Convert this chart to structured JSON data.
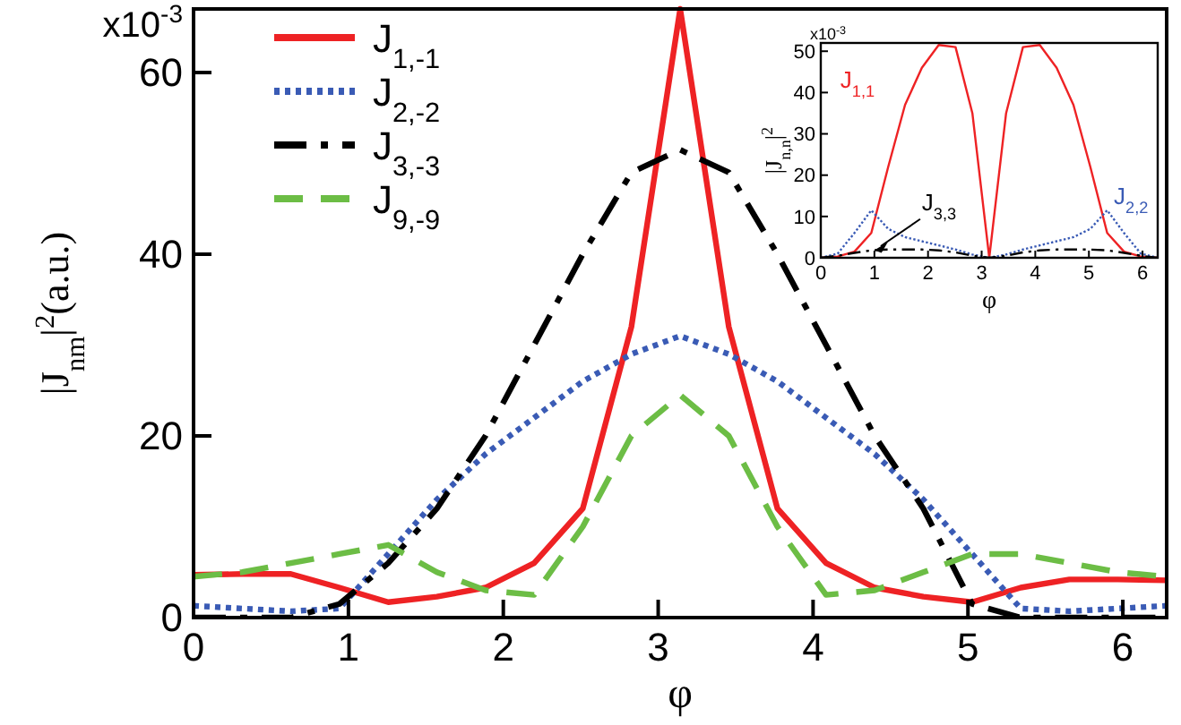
{
  "chart_data": [
    {
      "type": "line",
      "xlabel": "φ",
      "ylabel": "|J$_{nm}$|$^{2}$(a.u.)",
      "x": [
        0,
        0.314,
        0.628,
        0.942,
        1.257,
        1.571,
        1.885,
        2.199,
        2.513,
        2.827,
        3.142,
        3.456,
        3.77,
        4.084,
        4.398,
        4.712,
        5.027,
        5.341,
        5.655,
        5.969,
        6.283
      ],
      "series": [
        {
          "name": "J$_{1,-1}$",
          "color": "#ee2224",
          "line_style": "solid",
          "values": [
            4.7,
            4.8,
            4.8,
            3.3,
            1.7,
            2.3,
            3.3,
            6,
            12,
            32,
            67,
            32,
            12,
            6,
            3.3,
            2.3,
            1.7,
            3.3,
            4.2,
            4.2,
            4.1
          ]
        },
        {
          "name": "J$_{2,-2}$",
          "color": "#3a5bb5",
          "line_style": "dotted",
          "values": [
            1.3,
            1,
            0.7,
            1,
            7,
            13,
            18,
            22,
            26,
            29,
            31,
            29,
            26,
            22,
            18,
            13,
            7,
            1,
            0.7,
            1,
            1.3
          ]
        },
        {
          "name": "J$_{3,-3}$",
          "color": "#000000",
          "line_style": "dashdot",
          "values": [
            0,
            0,
            0,
            1.5,
            6,
            12,
            20,
            30,
            40,
            49,
            51.5,
            49,
            40,
            30,
            20,
            12,
            1.5,
            0,
            0,
            0,
            0
          ]
        },
        {
          "name": "J$_{9,-9}$",
          "color": "#6cbd45",
          "line_style": "dashed",
          "values": [
            4.5,
            5,
            6,
            7,
            8,
            5,
            3,
            2.5,
            10,
            20,
            24.5,
            20,
            10,
            2.5,
            3,
            5,
            7,
            7,
            6,
            5,
            4.5
          ]
        }
      ],
      "xlim": [
        0,
        6.283
      ],
      "ylim": [
        0,
        67
      ],
      "xticks": [
        0,
        1,
        2,
        3,
        4,
        5,
        6
      ],
      "yticks": [
        0,
        20,
        40,
        60
      ],
      "annotations": [
        "x10$^{-3}$"
      ],
      "legend": "top left",
      "grid": false
    },
    {
      "type": "line",
      "xlabel": "φ",
      "ylabel": "|J$_{n,n}$|$^{2}$",
      "x": [
        0,
        0.314,
        0.628,
        0.942,
        1.257,
        1.571,
        1.885,
        2.199,
        2.513,
        2.827,
        3.142,
        3.456,
        3.77,
        4.084,
        4.398,
        4.712,
        5.027,
        5.341,
        5.655,
        5.969,
        6.283
      ],
      "series": [
        {
          "name": "J$_{1,1}$",
          "color": "#ee2224",
          "line_style": "solid",
          "values": [
            0,
            0.3,
            1.5,
            6,
            22,
            37,
            46,
            51.5,
            51,
            35,
            0,
            35,
            51,
            51.5,
            46,
            37,
            22,
            6,
            1.5,
            0.3,
            0
          ]
        },
        {
          "name": "J$_{2,2}$",
          "color": "#3a5bb5",
          "line_style": "dotted",
          "values": [
            0,
            1,
            6,
            11.5,
            7,
            5,
            4,
            3,
            2,
            0.8,
            0,
            0.8,
            2,
            3,
            4,
            5,
            7,
            11.5,
            6,
            1,
            0
          ]
        },
        {
          "name": "J$_{3,3}$",
          "color": "#000000",
          "line_style": "dashdot",
          "values": [
            0,
            0.5,
            1.2,
            1.8,
            2,
            2,
            2,
            1.8,
            1.3,
            0.5,
            0,
            0.5,
            1.3,
            1.8,
            2,
            2,
            2,
            1.8,
            1.2,
            0.5,
            0
          ]
        }
      ],
      "xlim": [
        0,
        6.283
      ],
      "ylim": [
        0,
        52
      ],
      "xticks": [
        0,
        1,
        2,
        3,
        4,
        5,
        6
      ],
      "yticks": [
        0,
        10,
        20,
        30,
        40,
        50
      ],
      "annotations": [
        "x10$^{-3}$"
      ],
      "legend": false,
      "grid": false
    }
  ]
}
